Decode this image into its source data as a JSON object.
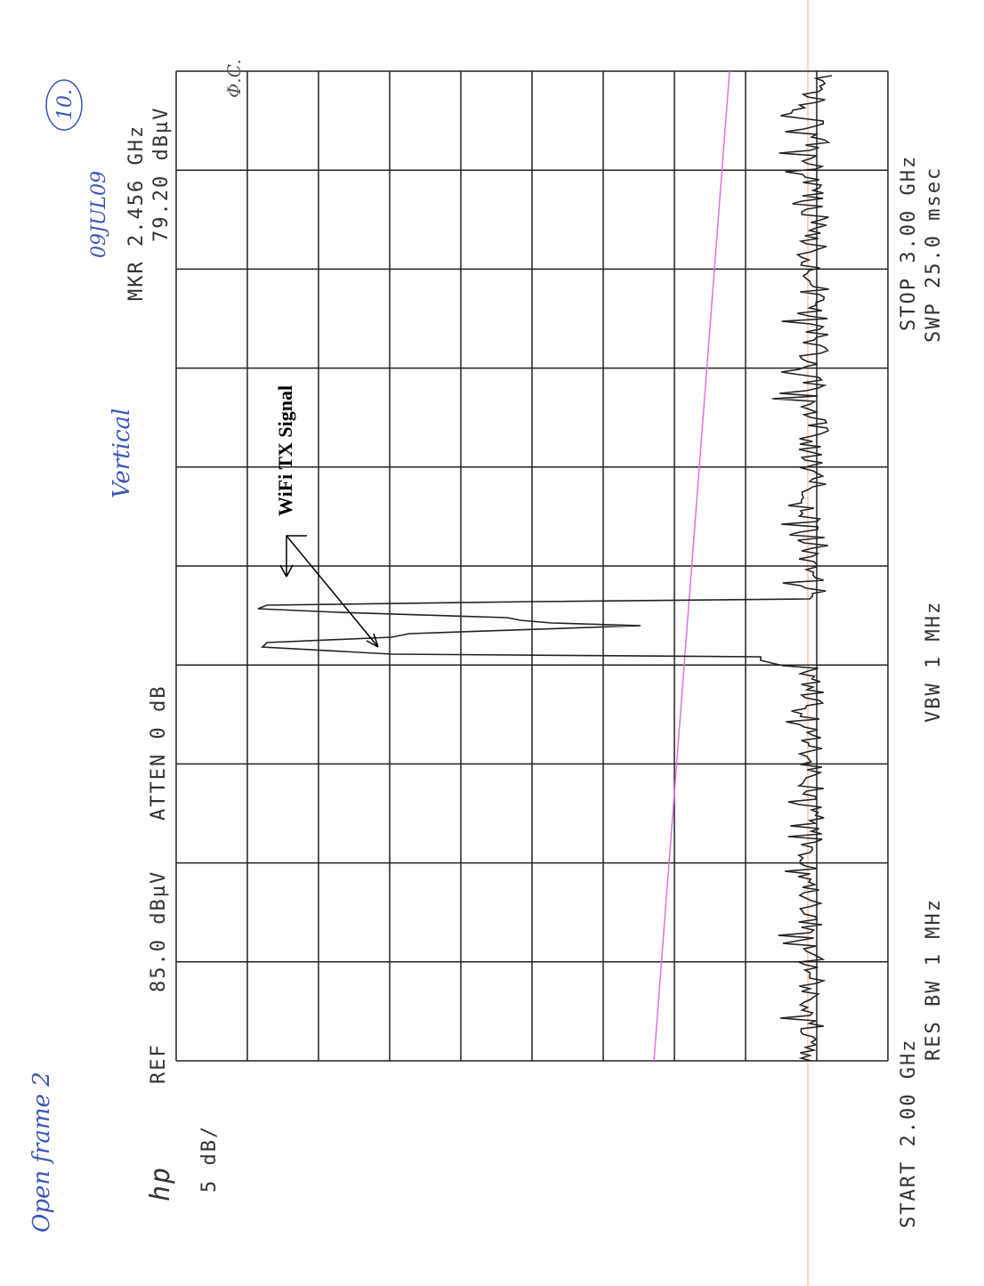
{
  "header": {
    "logo": "hp",
    "ref_label": "REF",
    "ref_level": "85.0 dBµV",
    "atten": "ATTEN 0 dB",
    "marker_freq": "MKR 2.456 GHz",
    "marker_level": "79.20 dBµV",
    "scale": "5 dB/"
  },
  "footer": {
    "start": "START 2.00 GHz",
    "res_bw": "RES BW 1 MHz",
    "vbw": "VBW 1 MHz",
    "stop": "STOP 3.00 GHz",
    "sweep": "SWP 25.0 msec"
  },
  "annotations": {
    "label": "WiFi TX Signal",
    "note_title": "Open frame 2",
    "polarization": "Vertical",
    "date": "09JUL09",
    "page": "10.",
    "initials": "Φ.C."
  }
}
